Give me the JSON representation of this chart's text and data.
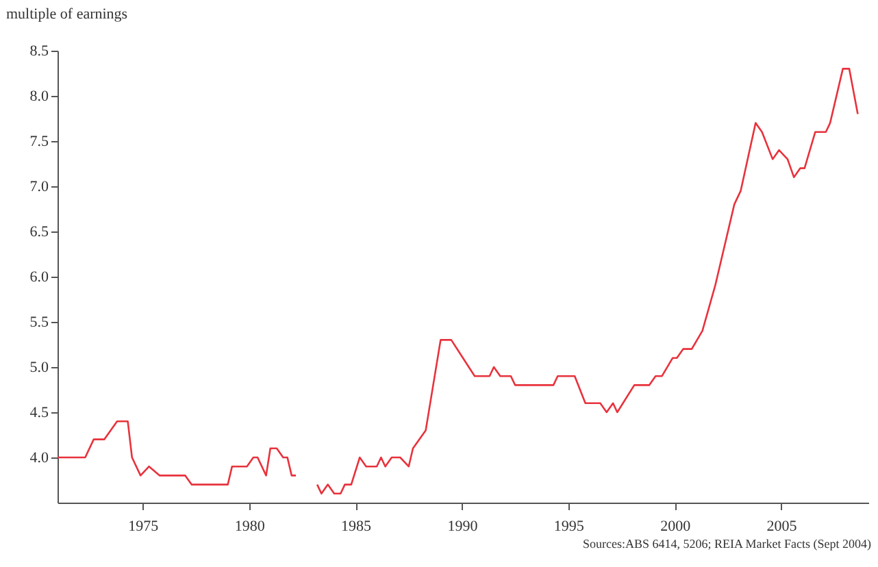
{
  "chart_data": {
    "type": "line",
    "ylabel": "multiple of earnings",
    "annotations": [
      "Sources:ABS 6414, 5206; REIA Market Facts (Sept 2004)"
    ],
    "x": [
      1971.0,
      1971.5,
      1972.3,
      1972.7,
      1973.2,
      1973.8,
      1974.3,
      1974.5,
      1974.9,
      1975.3,
      1975.8,
      1977.0,
      1977.3,
      1979.0,
      1979.2,
      1979.9,
      1980.2,
      1980.4,
      1980.8,
      1981.0,
      1981.3,
      1981.6,
      1981.8,
      1982.0,
      1982.2,
      1982.5,
      1983.0,
      1983.2,
      1983.4,
      1983.7,
      1984.0,
      1984.3,
      1984.5,
      1984.8,
      1985.2,
      1985.5,
      1986.0,
      1986.2,
      1986.4,
      1986.7,
      1987.1,
      1987.5,
      1987.7,
      1988.3,
      1989.0,
      1989.5,
      1990.6,
      1991.3,
      1991.5,
      1991.8,
      1992.3,
      1992.5,
      1994.3,
      1994.5,
      1995.3,
      1995.8,
      1996.5,
      1996.8,
      1997.1,
      1997.3,
      1998.1,
      1998.8,
      1999.1,
      1999.4,
      1999.9,
      2000.1,
      2000.4,
      2000.8,
      2001.3,
      2001.9,
      2002.8,
      2003.1,
      2003.8,
      2004.1,
      2004.6,
      2004.9,
      2005.1,
      2005.3,
      2005.6,
      2005.9,
      2006.1,
      2006.6,
      2007.1,
      2007.3,
      2007.9,
      2008.2,
      2008.6
    ],
    "series": [
      {
        "color": "#e8323c",
        "values": [
          4.0,
          4.0,
          4.0,
          4.2,
          4.2,
          4.4,
          4.4,
          4.0,
          3.8,
          3.9,
          3.8,
          3.8,
          3.7,
          3.7,
          3.9,
          3.9,
          4.0,
          4.0,
          3.8,
          4.1,
          4.1,
          4.0,
          4.0,
          3.8,
          3.8,
          null,
          null,
          3.7,
          3.6,
          3.7,
          3.6,
          3.6,
          3.7,
          3.7,
          4.0,
          3.9,
          3.9,
          4.0,
          3.9,
          4.0,
          4.0,
          3.9,
          4.1,
          4.3,
          5.3,
          5.3,
          4.9,
          4.9,
          5.0,
          4.9,
          4.9,
          4.8,
          4.8,
          4.9,
          4.9,
          4.6,
          4.6,
          4.5,
          4.6,
          4.5,
          4.8,
          4.8,
          4.9,
          4.9,
          5.1,
          5.1,
          5.2,
          5.2,
          5.4,
          5.9,
          6.8,
          6.95,
          7.7,
          7.6,
          7.3,
          7.4,
          7.35,
          7.3,
          7.1,
          7.2,
          7.2,
          7.6,
          7.6,
          7.7,
          8.3,
          8.3,
          7.8
        ]
      }
    ],
    "xlim": [
      1971.0,
      2009.1
    ],
    "xticks": [
      1975,
      1980,
      1985,
      1990,
      1995,
      2000,
      2005
    ],
    "ylim": [
      3.5,
      8.5
    ],
    "yticks": [
      {
        "value": 4,
        "label": "4.0"
      },
      {
        "value": 4.5,
        "label": "4.5"
      },
      {
        "value": 5,
        "label": "5.0"
      },
      {
        "value": 5.5,
        "label": "5.5"
      },
      {
        "value": 6,
        "label": "6.0"
      },
      {
        "value": 6.5,
        "label": "6.5"
      },
      {
        "value": 7,
        "label": "7.0"
      },
      {
        "value": 7.5,
        "label": "7.5"
      },
      {
        "value": 8,
        "label": "8.0"
      },
      {
        "value": 8.5,
        "label": "8.5"
      }
    ],
    "grid": false,
    "line_style": "solid",
    "marker": "none"
  }
}
